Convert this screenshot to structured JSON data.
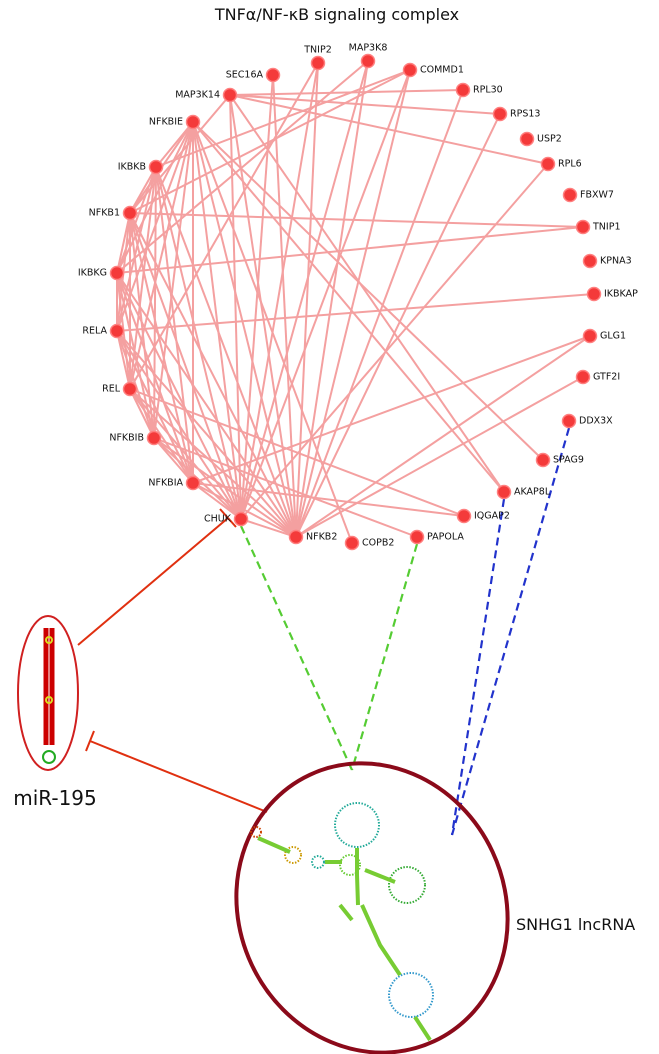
{
  "title": "TNFα/NF-κB signaling complex",
  "nodes": [
    "SEC16A",
    "TNIP2",
    "MAP3K8",
    "COMMD1",
    "MAP3K14",
    "RPL30",
    "NFKBIE",
    "RPS13",
    "USP2",
    "IKBKB",
    "RPL6",
    "FBXW7",
    "NFKB1",
    "TNIP1",
    "IKBKG",
    "KPNA3",
    "IKBKAP",
    "RELA",
    "GLG1",
    "GTF2I",
    "REL",
    "DDX3X",
    "NFKBIB",
    "SPAG9",
    "NFKBIA",
    "AKAP8L",
    "IQGAP2",
    "CHUK",
    "NFKB2",
    "COPB2",
    "PAPOLA"
  ],
  "mirna": {
    "label": "miR-195"
  },
  "lncrna": {
    "label": "SNHG1 lncRNA"
  }
}
